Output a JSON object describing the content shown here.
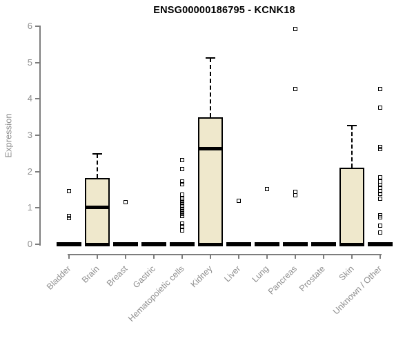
{
  "title": "ENSG00000186795 - KCNK18",
  "chart_data": {
    "type": "boxplot",
    "title": "ENSG00000186795 - KCNK18",
    "xlabel": "",
    "ylabel": "Expression",
    "ylim": [
      0,
      6
    ],
    "y_ticks": [
      0,
      1,
      2,
      3,
      4,
      5,
      6
    ],
    "grid": false,
    "legend": false,
    "box_fill": "#EFE8CC",
    "box_border": "#000000",
    "axis_color": "#7D7D7D",
    "text_color": "#8E8E8E",
    "title_color": "#000000",
    "categories": [
      "Bladder",
      "Brain",
      "Breast",
      "Gastric",
      "Hematopoietic cells",
      "Kidney",
      "Liver",
      "Lung",
      "Pancreas",
      "Prostate",
      "Skin",
      "Unknown / Other"
    ],
    "series": [
      {
        "category": "Bladder",
        "whisker_low": 0,
        "q1": 0,
        "median": 0,
        "q3": 0,
        "whisker_high": 0,
        "outliers": [
          1.46,
          0.78,
          0.72
        ]
      },
      {
        "category": "Brain",
        "whisker_low": 0,
        "q1": 0,
        "median": 1.02,
        "q3": 1.83,
        "whisker_high": 2.49,
        "outliers": []
      },
      {
        "category": "Breast",
        "whisker_low": 0,
        "q1": 0,
        "median": 0,
        "q3": 0,
        "whisker_high": 0,
        "outliers": [
          1.16
        ]
      },
      {
        "category": "Gastric",
        "whisker_low": 0,
        "q1": 0,
        "median": 0,
        "q3": 0,
        "whisker_high": 0,
        "outliers": []
      },
      {
        "category": "Hematopoietic cells",
        "whisker_low": 0,
        "q1": 0,
        "median": 0,
        "q3": 0,
        "whisker_high": 0,
        "outliers": [
          2.32,
          2.07,
          1.73,
          1.65,
          1.37,
          1.25,
          1.19,
          1.13,
          1.07,
          1.01,
          0.95,
          0.89,
          0.83,
          0.78,
          0.57,
          0.5,
          0.38
        ]
      },
      {
        "category": "Kidney",
        "whisker_low": 0,
        "q1": 0,
        "median": 2.64,
        "q3": 3.49,
        "whisker_high": 5.12,
        "outliers": []
      },
      {
        "category": "Liver",
        "whisker_low": 0,
        "q1": 0,
        "median": 0,
        "q3": 0,
        "whisker_high": 0,
        "outliers": [
          1.2
        ]
      },
      {
        "category": "Lung",
        "whisker_low": 0,
        "q1": 0,
        "median": 0,
        "q3": 0,
        "whisker_high": 0,
        "outliers": [
          1.52
        ]
      },
      {
        "category": "Pancreas",
        "whisker_low": 0,
        "q1": 0,
        "median": 0,
        "q3": 0,
        "whisker_high": 0,
        "outliers": [
          5.92,
          4.27,
          1.45,
          1.35
        ]
      },
      {
        "category": "Prostate",
        "whisker_low": 0,
        "q1": 0,
        "median": 0,
        "q3": 0,
        "whisker_high": 0,
        "outliers": []
      },
      {
        "category": "Skin",
        "whisker_low": 0,
        "q1": 0,
        "median": 0,
        "q3": 2.11,
        "whisker_high": 3.27,
        "outliers": []
      },
      {
        "category": "Unknown / Other",
        "whisker_low": 0,
        "q1": 0,
        "median": 0,
        "q3": 0,
        "whisker_high": 0,
        "outliers": [
          4.27,
          3.76,
          2.68,
          2.62,
          1.84,
          1.73,
          1.64,
          1.55,
          1.47,
          1.39,
          1.25,
          0.8,
          0.74,
          0.51,
          0.32
        ]
      }
    ]
  }
}
